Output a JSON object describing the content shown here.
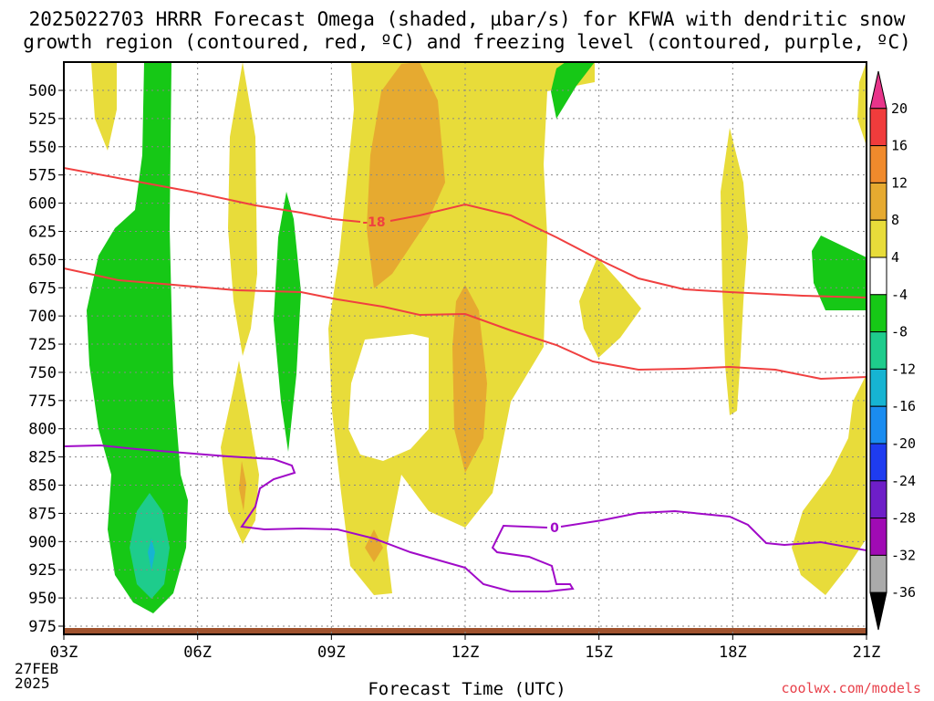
{
  "chart_data": {
    "type": "heatmap",
    "title_line1": "2025022703 HRRR Forecast Omega (shaded, µbar/s) for KFWA with dendritic snow",
    "title_line2": "growth region (contoured, red, ºC) and freezing level (contoured, purple, ºC)",
    "xlabel": "Forecast Time (UTC)",
    "x_ticks": [
      "03Z",
      "06Z",
      "09Z",
      "12Z",
      "15Z",
      "18Z",
      "21Z"
    ],
    "x_start_date": [
      "27FEB",
      "2025"
    ],
    "y_ticks": [
      500,
      525,
      550,
      575,
      600,
      625,
      650,
      675,
      700,
      725,
      750,
      775,
      800,
      825,
      850,
      875,
      900,
      925,
      950,
      975
    ],
    "y_axis": "pressure (hPa), inverted",
    "colorbar": {
      "ticks": [
        "20",
        "16",
        "12",
        "8",
        "4",
        "-4",
        "-8",
        "-12",
        "-16",
        "-20",
        "-24",
        "-28",
        "-32",
        "-36"
      ],
      "colors": [
        "#e8348a",
        "#f03c3c",
        "#f08a2c",
        "#e6aa30",
        "#e8dc3a",
        "#ffffff",
        "#16c816",
        "#1ecc8c",
        "#16b4d2",
        "#1a8cf0",
        "#1e3cf0",
        "#6e1ec8",
        "#a00ab4",
        "#aaaaaa",
        "#000000"
      ]
    },
    "contours": [
      {
        "label": "-18",
        "color": "#f04040",
        "kind": "dendritic growth region"
      },
      {
        "label": "0",
        "color": "#a00ac8",
        "kind": "freezing level"
      }
    ],
    "credit": "coolwx.com/models"
  }
}
